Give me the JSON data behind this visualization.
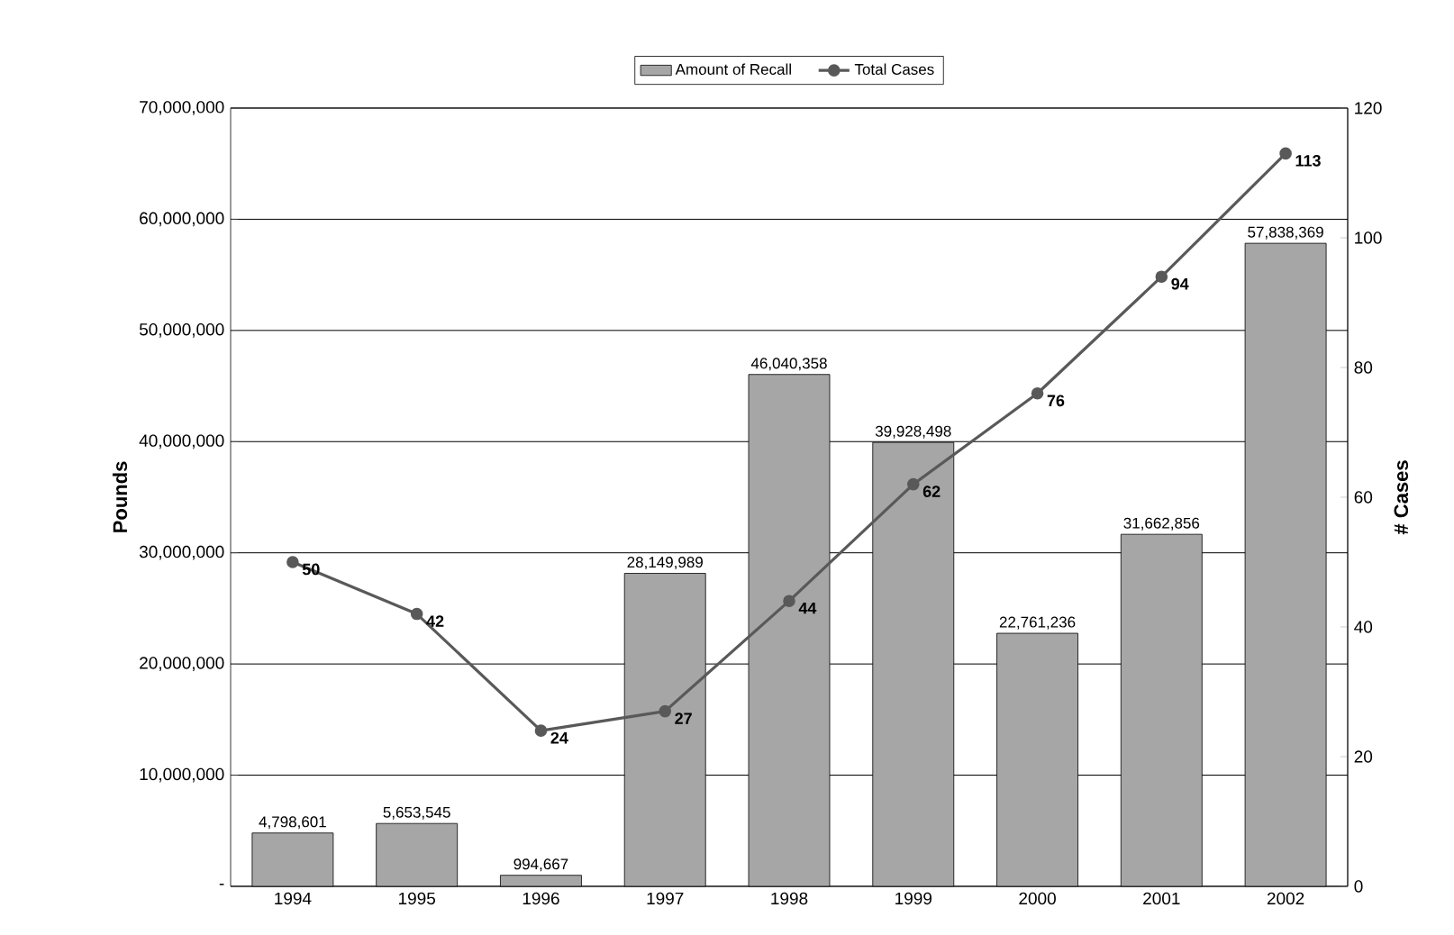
{
  "chart_data": {
    "type": "bar",
    "categories": [
      "1994",
      "1995",
      "1996",
      "1997",
      "1998",
      "1999",
      "2000",
      "2001",
      "2002"
    ],
    "series": [
      {
        "name": "Amount of Recall",
        "color": "#a6a6a6",
        "values": [
          4798601,
          5653545,
          994667,
          28149989,
          46040358,
          39928498,
          22761236,
          31662856,
          57838369
        ],
        "value_labels": [
          "4,798,601",
          "5,653,545",
          "994,667",
          "28,149,989",
          "46,040,358",
          "39,928,498",
          "22,761,236",
          "31,662,856",
          "57,838,369"
        ]
      },
      {
        "name": "Total Cases",
        "type": "line",
        "axis": "y2",
        "color": "#595959",
        "marker": "circle",
        "values": [
          50,
          42,
          24,
          27,
          44,
          62,
          76,
          94,
          113
        ],
        "value_labels": [
          "50",
          "42",
          "24",
          "27",
          "44",
          "62",
          "76",
          "94",
          "113"
        ]
      }
    ],
    "ylabel": "Pounds",
    "y2label": "# Cases",
    "ylim": [
      0,
      70000000
    ],
    "yticks": [
      {
        "value": 0,
        "label": "-"
      },
      {
        "value": 10000000,
        "label": "10,000,000"
      },
      {
        "value": 20000000,
        "label": "20,000,000"
      },
      {
        "value": 30000000,
        "label": "30,000,000"
      },
      {
        "value": 40000000,
        "label": "40,000,000"
      },
      {
        "value": 50000000,
        "label": "50,000,000"
      },
      {
        "value": 60000000,
        "label": "60,000,000"
      },
      {
        "value": 70000000,
        "label": "70,000,000"
      }
    ],
    "y2lim": [
      0,
      120
    ],
    "y2ticks": [
      0,
      20,
      40,
      60,
      80,
      100,
      120
    ],
    "grid": "y",
    "legend": "top"
  }
}
